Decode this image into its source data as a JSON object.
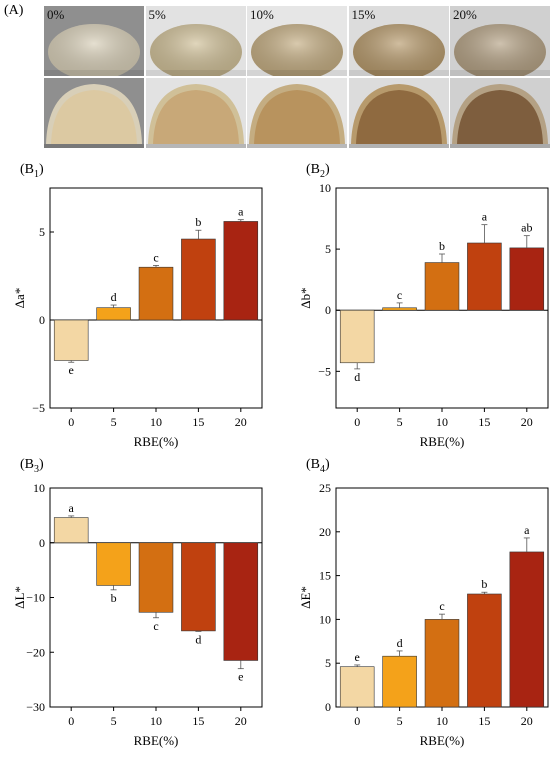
{
  "figure": {
    "panel_A_label": "(A)",
    "photos": {
      "labels": [
        "0%",
        "5%",
        "10%",
        "15%",
        "20%"
      ],
      "crust_colors": [
        "#d8cfb8",
        "#d0c098",
        "#c4ad82",
        "#b79a6c",
        "#b4a184"
      ],
      "crumb_colors": [
        "#dcc9a2",
        "#c8a878",
        "#b8935e",
        "#8f6a40",
        "#7e5e3e"
      ],
      "background_colors": [
        "#8f8f8f",
        "#e2e2e2",
        "#e6e6e6",
        "#dcdcdc",
        "#d0d0d0"
      ]
    }
  },
  "chart_data": [
    {
      "panel": "(B",
      "panel_sub": "1",
      "panel_close": ")",
      "type": "bar",
      "categories": [
        "0",
        "5",
        "10",
        "15",
        "20"
      ],
      "values": [
        -2.3,
        0.7,
        3.0,
        4.6,
        5.6
      ],
      "errors": [
        0.1,
        0.15,
        0.1,
        0.5,
        0.1
      ],
      "letters": [
        "e",
        "d",
        "c",
        "b",
        "a"
      ],
      "xlabel": "RBE(%)",
      "ylabel": "Δa*",
      "ylim": [
        -5,
        7.5
      ],
      "yticks": [
        -5,
        0,
        5
      ],
      "colors": [
        "#f3d7a4",
        "#f4a21a",
        "#d36f12",
        "#c0410f",
        "#a82412"
      ]
    },
    {
      "panel": "(B",
      "panel_sub": "2",
      "panel_close": ")",
      "type": "bar",
      "categories": [
        "0",
        "5",
        "10",
        "15",
        "20"
      ],
      "values": [
        -4.3,
        0.2,
        3.9,
        5.5,
        5.1
      ],
      "errors": [
        0.5,
        0.4,
        0.7,
        1.5,
        1.0
      ],
      "letters": [
        "d",
        "c",
        "b",
        "a",
        "ab"
      ],
      "xlabel": "RBE(%)",
      "ylabel": "Δb*",
      "ylim": [
        -8,
        10
      ],
      "yticks": [
        -5,
        0,
        5,
        10
      ],
      "colors": [
        "#f3d7a4",
        "#f4a21a",
        "#d36f12",
        "#c0410f",
        "#a82412"
      ]
    },
    {
      "panel": "(B",
      "panel_sub": "3",
      "panel_close": ")",
      "type": "bar",
      "categories": [
        "0",
        "5",
        "10",
        "15",
        "20"
      ],
      "values": [
        4.6,
        -7.8,
        -12.7,
        -16.1,
        -21.5
      ],
      "errors": [
        0.3,
        0.8,
        1.0,
        0.1,
        1.5
      ],
      "letters": [
        "a",
        "b",
        "c",
        "d",
        "e"
      ],
      "xlabel": "RBE(%)",
      "ylabel": "ΔL*",
      "ylim": [
        -30,
        10
      ],
      "yticks": [
        -30,
        -20,
        -10,
        0,
        10
      ],
      "colors": [
        "#f3d7a4",
        "#f4a21a",
        "#d36f12",
        "#c0410f",
        "#a82412"
      ]
    },
    {
      "panel": "(B",
      "panel_sub": "4",
      "panel_close": ")",
      "type": "bar",
      "categories": [
        "0",
        "5",
        "10",
        "15",
        "20"
      ],
      "values": [
        4.6,
        5.8,
        10.0,
        12.9,
        17.7
      ],
      "errors": [
        0.2,
        0.6,
        0.6,
        0.2,
        1.6
      ],
      "letters": [
        "e",
        "d",
        "c",
        "b",
        "a"
      ],
      "xlabel": "RBE(%)",
      "ylabel": "ΔE*",
      "ylim": [
        0,
        25
      ],
      "yticks": [
        0,
        5,
        10,
        15,
        20,
        25
      ],
      "colors": [
        "#f3d7a4",
        "#f4a21a",
        "#d36f12",
        "#c0410f",
        "#a82412"
      ]
    }
  ]
}
